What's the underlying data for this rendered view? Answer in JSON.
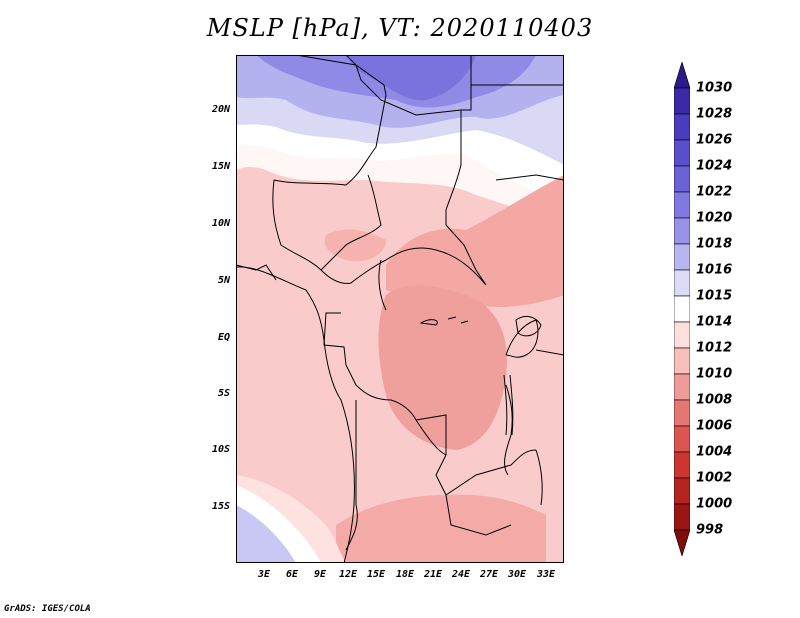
{
  "title": "MSLP [hPa], VT: 2020110403",
  "footer": "GrADS: IGES/COLA",
  "map": {
    "lat_labels": [
      "20N",
      "15N",
      "10N",
      "5N",
      "EQ",
      "5S",
      "10S",
      "15S"
    ],
    "lon_labels": [
      "3E",
      "6E",
      "9E",
      "12E",
      "15E",
      "18E",
      "21E",
      "24E",
      "27E",
      "30E",
      "33E"
    ]
  },
  "colorbar": {
    "labels": [
      "1030",
      "1028",
      "1026",
      "1024",
      "1022",
      "1020",
      "1018",
      "1016",
      "1015",
      "1014",
      "1012",
      "1010",
      "1008",
      "1006",
      "1004",
      "1002",
      "1000",
      "998"
    ],
    "colors": [
      "#2a1a8c",
      "#3a2aa6",
      "#4a3cbc",
      "#5a4fcc",
      "#6b62d8",
      "#7f79e0",
      "#9893e8",
      "#b8b6f0",
      "#dcdcf8",
      "#ffffff",
      "#fde0de",
      "#f7c0bd",
      "#ef9c98",
      "#e67872",
      "#dc5550",
      "#cc3630",
      "#b42420",
      "#9a1612",
      "#7e0c08"
    ]
  }
}
